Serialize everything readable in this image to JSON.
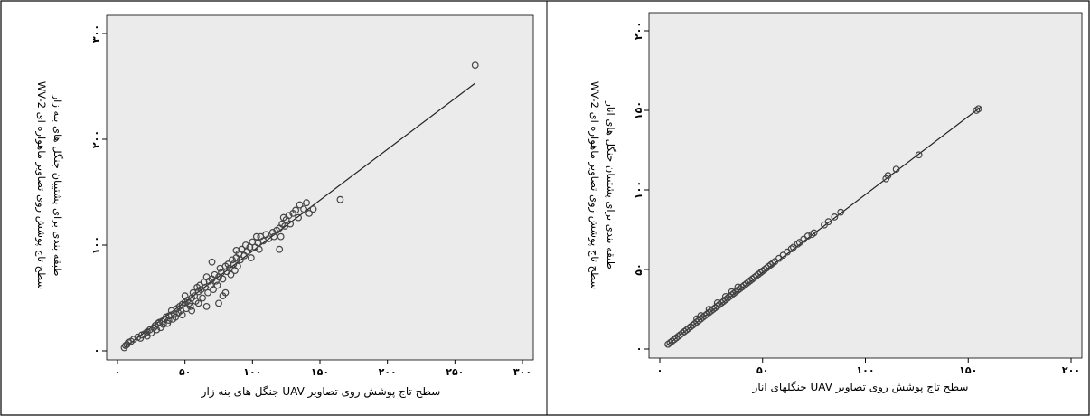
{
  "chart_data": [
    {
      "type": "scatter",
      "xlabel": "سطح تاج پوشش روی تصاویر UAV جنگل های بنه زار",
      "ylabel_lines": [
        "سطح تاج پوشش روی تصاویر ماهواره ای WV-2",
        "طبقه بندی برای پشتیبان جنگل های بنه زار"
      ],
      "xlim": [
        0,
        300
      ],
      "ylim": [
        0,
        300
      ],
      "x_ticks": [
        0,
        50,
        100,
        150,
        200,
        250,
        300
      ],
      "x_tick_labels": [
        "۰",
        "۵۰",
        "۱۰۰",
        "۱۵۰",
        "۲۰۰",
        "۲۵۰",
        "۳۰۰"
      ],
      "y_ticks": [
        0,
        100,
        200,
        300
      ],
      "y_tick_labels": [
        "۰",
        "۱۰۰",
        "۲۰۰",
        "۳۰۰"
      ],
      "fit_line": {
        "x": [
          5,
          265
        ],
        "y": [
          3,
          253
        ]
      },
      "points": [
        [
          5,
          3
        ],
        [
          6,
          5
        ],
        [
          7,
          6
        ],
        [
          8,
          8
        ],
        [
          10,
          9
        ],
        [
          12,
          11
        ],
        [
          15,
          13
        ],
        [
          17,
          12
        ],
        [
          18,
          15
        ],
        [
          20,
          16
        ],
        [
          22,
          18
        ],
        [
          22,
          14
        ],
        [
          24,
          20
        ],
        [
          25,
          17
        ],
        [
          27,
          22
        ],
        [
          28,
          24
        ],
        [
          29,
          20
        ],
        [
          30,
          26
        ],
        [
          31,
          27
        ],
        [
          32,
          22
        ],
        [
          33,
          28
        ],
        [
          34,
          25
        ],
        [
          35,
          30
        ],
        [
          36,
          32
        ],
        [
          37,
          26
        ],
        [
          38,
          33
        ],
        [
          38,
          29
        ],
        [
          40,
          34
        ],
        [
          40,
          38
        ],
        [
          41,
          30
        ],
        [
          42,
          35
        ],
        [
          43,
          32
        ],
        [
          44,
          40
        ],
        [
          45,
          36
        ],
        [
          46,
          42
        ],
        [
          47,
          38
        ],
        [
          48,
          44
        ],
        [
          48,
          34
        ],
        [
          50,
          46
        ],
        [
          50,
          52
        ],
        [
          51,
          40
        ],
        [
          52,
          48
        ],
        [
          53,
          45
        ],
        [
          54,
          42
        ],
        [
          55,
          50
        ],
        [
          55,
          38
        ],
        [
          56,
          55
        ],
        [
          57,
          52
        ],
        [
          58,
          47
        ],
        [
          59,
          60
        ],
        [
          60,
          56
        ],
        [
          60,
          45
        ],
        [
          61,
          62
        ],
        [
          62,
          58
        ],
        [
          63,
          50
        ],
        [
          64,
          65
        ],
        [
          65,
          60
        ],
        [
          66,
          42
        ],
        [
          66,
          70
        ],
        [
          67,
          55
        ],
        [
          68,
          66
        ],
        [
          69,
          62
        ],
        [
          70,
          68
        ],
        [
          70,
          84
        ],
        [
          71,
          58
        ],
        [
          72,
          72
        ],
        [
          73,
          66
        ],
        [
          74,
          62
        ],
        [
          75,
          70
        ],
        [
          75,
          45
        ],
        [
          76,
          78
        ],
        [
          77,
          74
        ],
        [
          78,
          68
        ],
        [
          78,
          52
        ],
        [
          80,
          80
        ],
        [
          80,
          55
        ],
        [
          81,
          75
        ],
        [
          82,
          82
        ],
        [
          83,
          78
        ],
        [
          84,
          72
        ],
        [
          85,
          86
        ],
        [
          86,
          82
        ],
        [
          87,
          76
        ],
        [
          88,
          88
        ],
        [
          88,
          95
        ],
        [
          89,
          80
        ],
        [
          90,
          92
        ],
        [
          91,
          86
        ],
        [
          92,
          96
        ],
        [
          94,
          90
        ],
        [
          95,
          100
        ],
        [
          96,
          94
        ],
        [
          98,
          98
        ],
        [
          99,
          88
        ],
        [
          100,
          103
        ],
        [
          102,
          98
        ],
        [
          103,
          108
        ],
        [
          104,
          102
        ],
        [
          105,
          96
        ],
        [
          106,
          108
        ],
        [
          108,
          104
        ],
        [
          110,
          110
        ],
        [
          112,
          106
        ],
        [
          115,
          112
        ],
        [
          116,
          108
        ],
        [
          118,
          114
        ],
        [
          120,
          116
        ],
        [
          120,
          96
        ],
        [
          121,
          108
        ],
        [
          122,
          120
        ],
        [
          123,
          126
        ],
        [
          124,
          118
        ],
        [
          125,
          124
        ],
        [
          127,
          128
        ],
        [
          128,
          120
        ],
        [
          130,
          130
        ],
        [
          132,
          133
        ],
        [
          134,
          126
        ],
        [
          135,
          138
        ],
        [
          138,
          134
        ],
        [
          140,
          140
        ],
        [
          142,
          130
        ],
        [
          145,
          134
        ],
        [
          165,
          143
        ],
        [
          265,
          270
        ]
      ]
    },
    {
      "type": "scatter",
      "xlabel": "سطح تاج پوشش روی تصاویر UAV جنگلهای انار",
      "ylabel_lines": [
        "سطح تاج پوشش روی تصاویر ماهواره ای WV-2",
        "طبقه بندی برای پشتیبان جنگل های انار"
      ],
      "xlim": [
        0,
        200
      ],
      "ylim": [
        0,
        200
      ],
      "x_ticks": [
        0,
        50,
        100,
        150,
        200
      ],
      "x_tick_labels": [
        "۰",
        "۵۰",
        "۱۰۰",
        "۱۵۰",
        "۲۰۰"
      ],
      "y_ticks": [
        0,
        50,
        100,
        150,
        200
      ],
      "y_tick_labels": [
        "۰",
        "۵۰",
        "۱۰۰",
        "۱۵۰",
        "۲۰۰"
      ],
      "fit_line": {
        "x": [
          3,
          156
        ],
        "y": [
          2,
          152
        ]
      },
      "points": [
        [
          4,
          3
        ],
        [
          5,
          4
        ],
        [
          6,
          5
        ],
        [
          7,
          6
        ],
        [
          8,
          7
        ],
        [
          9,
          8
        ],
        [
          10,
          9
        ],
        [
          11,
          10
        ],
        [
          12,
          11
        ],
        [
          13,
          12
        ],
        [
          14,
          13
        ],
        [
          15,
          14
        ],
        [
          16,
          15
        ],
        [
          17,
          16
        ],
        [
          18,
          17
        ],
        [
          18,
          19
        ],
        [
          19,
          18
        ],
        [
          20,
          19
        ],
        [
          20,
          21
        ],
        [
          21,
          20
        ],
        [
          22,
          21
        ],
        [
          23,
          22
        ],
        [
          24,
          23
        ],
        [
          24,
          25
        ],
        [
          25,
          24
        ],
        [
          26,
          25
        ],
        [
          27,
          26
        ],
        [
          28,
          27
        ],
        [
          28,
          29
        ],
        [
          29,
          28
        ],
        [
          30,
          29
        ],
        [
          31,
          30
        ],
        [
          32,
          31
        ],
        [
          32,
          33
        ],
        [
          33,
          32
        ],
        [
          34,
          33
        ],
        [
          35,
          34
        ],
        [
          35,
          36
        ],
        [
          36,
          35
        ],
        [
          37,
          36
        ],
        [
          38,
          37
        ],
        [
          38,
          39
        ],
        [
          39,
          38
        ],
        [
          40,
          39
        ],
        [
          41,
          40
        ],
        [
          42,
          41
        ],
        [
          43,
          42
        ],
        [
          44,
          43
        ],
        [
          45,
          44
        ],
        [
          46,
          45
        ],
        [
          47,
          46
        ],
        [
          48,
          47
        ],
        [
          49,
          48
        ],
        [
          50,
          49
        ],
        [
          51,
          50
        ],
        [
          52,
          51
        ],
        [
          53,
          52
        ],
        [
          54,
          53
        ],
        [
          55,
          54
        ],
        [
          56,
          55
        ],
        [
          58,
          57
        ],
        [
          60,
          59
        ],
        [
          62,
          61
        ],
        [
          64,
          63
        ],
        [
          65,
          64
        ],
        [
          67,
          66
        ],
        [
          68,
          67
        ],
        [
          70,
          69
        ],
        [
          72,
          71
        ],
        [
          74,
          72
        ],
        [
          75,
          73
        ],
        [
          80,
          78
        ],
        [
          82,
          80
        ],
        [
          85,
          83
        ],
        [
          88,
          86
        ],
        [
          110,
          107
        ],
        [
          111,
          109
        ],
        [
          115,
          113
        ],
        [
          126,
          122
        ],
        [
          154,
          150
        ],
        [
          155,
          151
        ]
      ]
    }
  ]
}
